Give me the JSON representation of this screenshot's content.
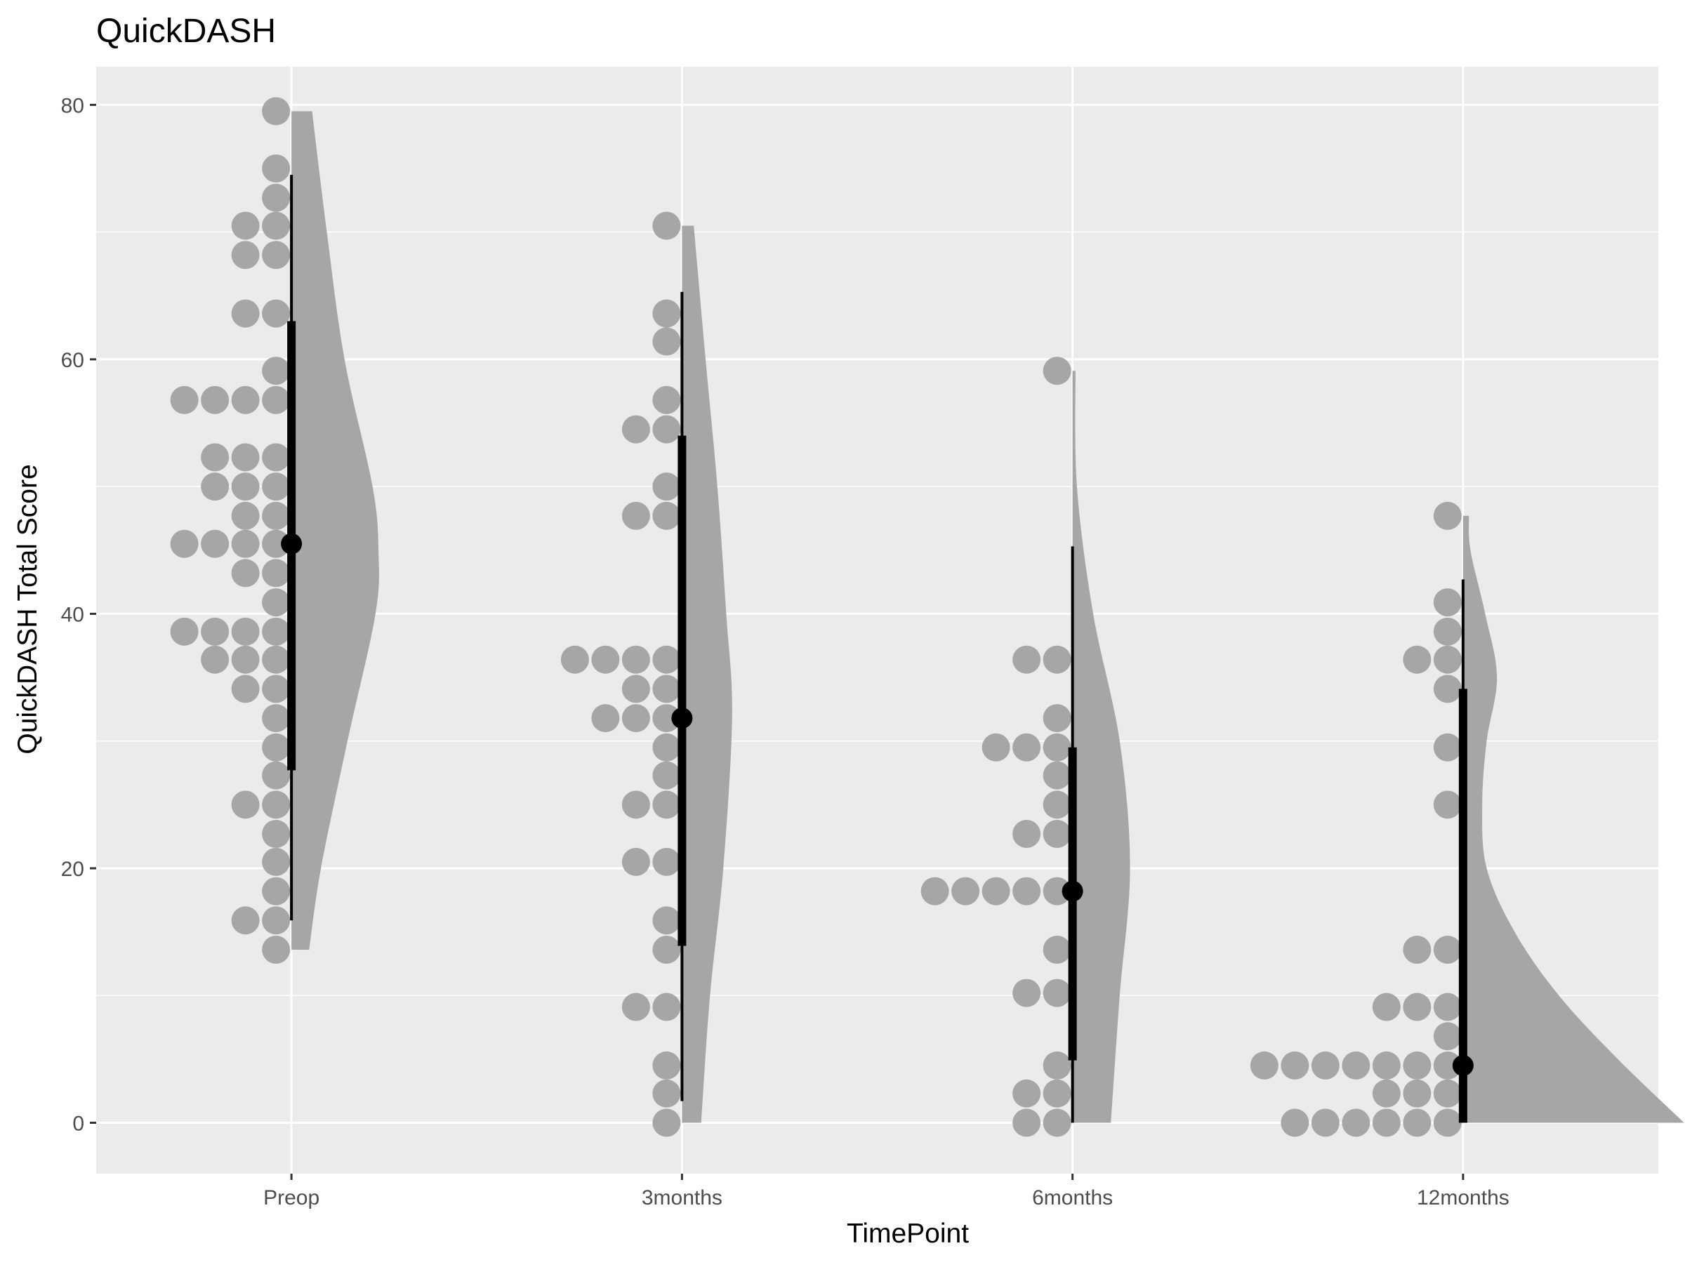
{
  "chart_data": {
    "type": "dotplot-halfeye",
    "title": "QuickDASH",
    "xlabel": "TimePoint",
    "ylabel": "QuickDASH Total Score",
    "categories": [
      "Preop",
      "3months",
      "6months",
      "12months"
    ],
    "ylim": [
      -4,
      83
    ],
    "yticks": [
      0,
      20,
      40,
      60,
      80
    ],
    "grid": true,
    "colors": {
      "panel_bg": "#ebebeb",
      "grid": "#ffffff",
      "dots": "#a6a6a6",
      "density": "#a6a6a6",
      "interval": "#000000"
    },
    "series": [
      {
        "category": "Preop",
        "points": [
          79.5,
          75,
          72.7,
          70.5,
          70.5,
          68.2,
          68.2,
          63.6,
          63.6,
          59.1,
          56.8,
          56.8,
          56.8,
          56.8,
          52.3,
          52.3,
          52.3,
          50,
          50,
          50,
          47.7,
          47.7,
          45.5,
          45.5,
          45.5,
          45.5,
          43.2,
          43.2,
          40.9,
          38.6,
          38.6,
          38.6,
          38.6,
          36.4,
          36.4,
          36.4,
          34.1,
          34.1,
          31.8,
          29.5,
          27.3,
          25,
          25,
          22.7,
          20.5,
          18.2,
          15.9,
          15.9,
          13.6
        ],
        "median": 45.5,
        "q1": 27.7,
        "q3": 63,
        "whisker_low": 15.9,
        "whisker_high": 74.5,
        "density": [
          [
            13.6,
            0.12
          ],
          [
            20,
            0.2
          ],
          [
            30,
            0.38
          ],
          [
            40,
            0.57
          ],
          [
            45,
            0.59
          ],
          [
            50,
            0.55
          ],
          [
            60,
            0.36
          ],
          [
            70,
            0.24
          ],
          [
            79.5,
            0.14
          ]
        ]
      },
      {
        "category": "3months",
        "points": [
          70.5,
          63.6,
          61.4,
          56.8,
          54.5,
          54.5,
          50,
          47.7,
          47.7,
          36.4,
          36.4,
          36.4,
          36.4,
          34.1,
          34.1,
          31.8,
          31.8,
          31.8,
          29.5,
          27.3,
          25,
          25,
          20.5,
          20.5,
          15.9,
          13.6,
          9.1,
          9.1,
          4.5,
          2.3,
          0
        ],
        "median": 31.8,
        "q1": 13.9,
        "q3": 54,
        "whisker_low": 1.7,
        "whisker_high": 65.3,
        "density": [
          [
            0,
            0.13
          ],
          [
            10,
            0.19
          ],
          [
            20,
            0.28
          ],
          [
            32,
            0.34
          ],
          [
            40,
            0.3
          ],
          [
            50,
            0.24
          ],
          [
            60,
            0.16
          ],
          [
            70.5,
            0.08
          ]
        ]
      },
      {
        "category": "6months",
        "points": [
          59.1,
          36.4,
          36.4,
          31.8,
          29.5,
          29.5,
          29.5,
          27.3,
          25,
          22.7,
          22.7,
          18.2,
          18.2,
          18.2,
          18.2,
          18.2,
          13.6,
          10.2,
          10.2,
          4.5,
          2.3,
          2.3,
          0,
          0
        ],
        "median": 18.2,
        "q1": 4.9,
        "q3": 29.5,
        "whisker_low": 0,
        "whisker_high": 45.3,
        "density": [
          [
            0,
            0.26
          ],
          [
            10,
            0.32
          ],
          [
            20,
            0.39
          ],
          [
            30,
            0.32
          ],
          [
            40,
            0.14
          ],
          [
            50,
            0.03
          ],
          [
            59.1,
            0.02
          ]
        ]
      },
      {
        "category": "12months",
        "points": [
          47.7,
          40.9,
          38.6,
          36.4,
          36.4,
          34.1,
          29.5,
          25,
          13.6,
          13.6,
          9.1,
          9.1,
          9.1,
          6.8,
          4.5,
          4.5,
          4.5,
          4.5,
          4.5,
          4.5,
          4.5,
          2.3,
          2.3,
          2.3,
          0,
          0,
          0,
          0,
          0,
          0
        ],
        "median": 4.5,
        "q1": 0,
        "q3": 34.1,
        "whisker_low": 0,
        "whisker_high": 42.7,
        "density": [
          [
            0,
            1.5
          ],
          [
            5,
            1.05
          ],
          [
            10,
            0.65
          ],
          [
            15,
            0.35
          ],
          [
            20,
            0.16
          ],
          [
            25,
            0.13
          ],
          [
            30,
            0.16
          ],
          [
            35,
            0.23
          ],
          [
            40,
            0.15
          ],
          [
            45,
            0.05
          ],
          [
            47.7,
            0.04
          ]
        ]
      }
    ]
  }
}
